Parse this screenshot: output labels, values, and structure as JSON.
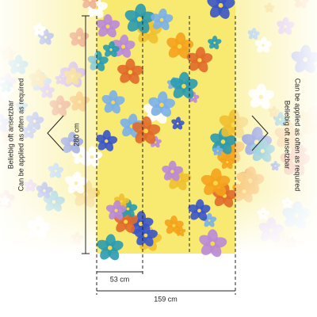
{
  "left_note": {
    "de": "Beliebig oft ansetzbar",
    "en": "Can be applied as often as required"
  },
  "right_note": {
    "de": "Beliebig oft ansetzbar",
    "en": "Can be applied as often as required"
  },
  "dimensions": {
    "height": "280 cm",
    "panel_width": "53 cm",
    "total_width": "159 cm"
  }
}
